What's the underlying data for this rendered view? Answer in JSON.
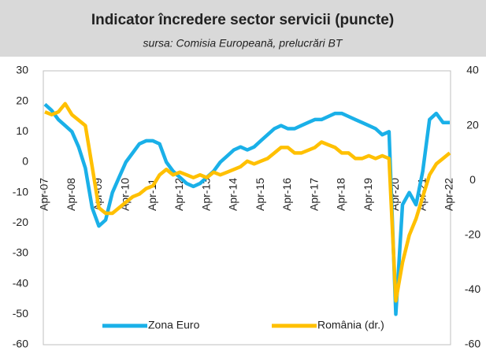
{
  "chart_data": {
    "type": "line",
    "title": "Indicator încredere sector servicii (puncte)",
    "subtitle": "sursa: Comisia Europeană, prelucrări BT",
    "categories": [
      "Apr-07",
      null,
      null,
      null,
      "Apr-08",
      null,
      null,
      null,
      "Apr-09",
      null,
      null,
      null,
      "Apr-10",
      null,
      null,
      null,
      "Apr-11",
      null,
      null,
      null,
      "Apr-12",
      null,
      null,
      null,
      "Apr-13",
      null,
      null,
      null,
      "Apr-14",
      null,
      null,
      null,
      "Apr-15",
      null,
      null,
      null,
      "Apr-16",
      null,
      null,
      null,
      "Apr-17",
      null,
      null,
      null,
      "Apr-18",
      null,
      null,
      null,
      "Apr-19",
      null,
      null,
      null,
      "Apr-20",
      null,
      null,
      null,
      "Apr-21",
      null,
      null,
      null,
      "Apr-22"
    ],
    "series": [
      {
        "name": "Zona Euro",
        "color": "#1ab0e8",
        "values": [
          19,
          17,
          14,
          12,
          10,
          5,
          -2,
          -15,
          -21,
          -19,
          -10,
          -5,
          0,
          3,
          6,
          7,
          7,
          6,
          0,
          -3,
          -5,
          -7,
          -8,
          -7,
          -5,
          -3,
          0,
          2,
          4,
          5,
          4,
          5,
          7,
          9,
          11,
          12,
          11,
          11,
          12,
          13,
          14,
          14,
          15,
          16,
          16,
          15,
          14,
          13,
          12,
          11,
          9,
          10,
          -50,
          -14,
          -10,
          -14,
          -3,
          14,
          16,
          13,
          13
        ]
      },
      {
        "name": "România (dr.)",
        "color": "#ffc000",
        "axis": "y2",
        "values": [
          25,
          24,
          25,
          28,
          24,
          22,
          20,
          5,
          -10,
          -12,
          -12,
          -10,
          -8,
          -6,
          -5,
          -3,
          -2,
          2,
          4,
          2,
          3,
          2,
          1,
          2,
          1,
          3,
          2,
          3,
          4,
          5,
          7,
          6,
          7,
          8,
          10,
          12,
          12,
          10,
          10,
          11,
          12,
          14,
          13,
          12,
          10,
          10,
          8,
          8,
          9,
          8,
          9,
          8,
          -44,
          -30,
          -20,
          -14,
          -6,
          2,
          6,
          8,
          10
        ]
      }
    ],
    "ylim": [
      -60,
      30
    ],
    "yticks": [
      -60,
      -50,
      -40,
      -30,
      -20,
      -10,
      0,
      10,
      20,
      30
    ],
    "y2lim": [
      -60,
      40
    ],
    "y2ticks": [
      -60,
      -40,
      -20,
      0,
      20,
      40
    ],
    "legend": "bottom"
  }
}
